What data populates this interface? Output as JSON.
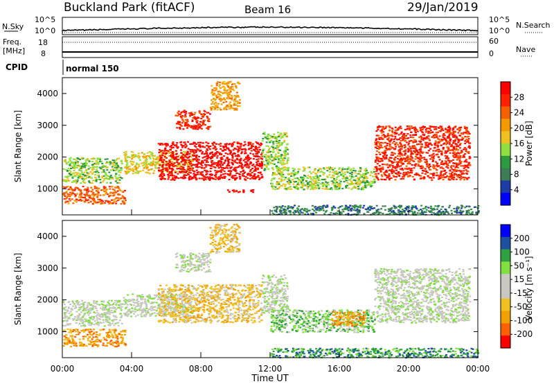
{
  "header": {
    "title": "Buckland Park (fitACF)",
    "beam": "Beam 16",
    "date": "29/Jan/2019"
  },
  "top_panel": {
    "nsky_label": "N.Sky",
    "nsearch_label": "N.Search",
    "left_ticks": [
      "10^5",
      "10^0"
    ],
    "right_ticks": [
      "10^5",
      "10^0"
    ],
    "freq_label_1": "Freq.",
    "freq_label_2": "[MHz]",
    "freq_ticks": [
      "18",
      "8"
    ],
    "nave_label": "Nave",
    "nave_ticks": [
      "60",
      "0"
    ],
    "cpid_label": "CPID",
    "cpid_value": "normal 150"
  },
  "x_axis": {
    "label": "Time UT",
    "ticks": [
      "00:00",
      "04:00",
      "08:00",
      "12:00",
      "16:00",
      "20:00",
      "00:00"
    ]
  },
  "colors": {
    "power": [
      "#0000ff",
      "#1e3ca8",
      "#3c7d55",
      "#2e9a40",
      "#90e040",
      "#f0c020",
      "#f49a00",
      "#f46000",
      "#ff2000",
      "#ff0000"
    ],
    "velocity": [
      "#ff0000",
      "#ff6000",
      "#f0a000",
      "#f0c020",
      "#c8c8c0",
      "#c8c8c0",
      "#80e040",
      "#2ea040",
      "#1e50a0",
      "#0000ff"
    ]
  },
  "chart_data": [
    {
      "type": "heatmap",
      "name": "power",
      "ylabel": "Slant Range [km]",
      "xlabel": "Time UT",
      "ylim": [
        180,
        4500
      ],
      "xlim": [
        0,
        24
      ],
      "yticks": [
        1000,
        2000,
        3000,
        4000
      ],
      "colorbar_label": "Power [dB]",
      "colorbar_ticks": [
        "28",
        "24",
        "20",
        "16",
        "12",
        "8",
        "4"
      ],
      "regions": [
        {
          "t": [
            0.0,
            3.6
          ],
          "r": [
            550,
            1100
          ],
          "level": 7
        },
        {
          "t": [
            0.0,
            3.4
          ],
          "r": [
            1200,
            2000
          ],
          "level": 4
        },
        {
          "t": [
            3.5,
            7.5
          ],
          "r": [
            1500,
            2200
          ],
          "level": 5
        },
        {
          "t": [
            5.5,
            11.5
          ],
          "r": [
            1300,
            2500
          ],
          "level": 9
        },
        {
          "t": [
            6.5,
            8.5
          ],
          "r": [
            2900,
            3500
          ],
          "level": 8
        },
        {
          "t": [
            8.5,
            10.2
          ],
          "r": [
            3500,
            4400
          ],
          "level": 6
        },
        {
          "t": [
            9.5,
            11.0
          ],
          "r": [
            900,
            1000
          ],
          "level": 9
        },
        {
          "t": [
            11.5,
            13.0
          ],
          "r": [
            1600,
            2800
          ],
          "level": 4
        },
        {
          "t": [
            12.0,
            18.0
          ],
          "r": [
            1000,
            1700
          ],
          "level": 4
        },
        {
          "t": [
            18.0,
            23.5
          ],
          "r": [
            1300,
            3000
          ],
          "level": 8
        },
        {
          "t": [
            12.0,
            24.0
          ],
          "r": [
            200,
            500
          ],
          "level": 2
        }
      ]
    },
    {
      "type": "heatmap",
      "name": "velocity",
      "ylabel": "Slant Range [km]",
      "xlabel": "Time UT",
      "ylim": [
        180,
        4500
      ],
      "xlim": [
        0,
        24
      ],
      "yticks": [
        1000,
        2000,
        3000,
        4000
      ],
      "colorbar_label": "Velocity [m s⁻¹]",
      "colorbar_ticks": [
        "200",
        "100",
        "50",
        "15",
        "-15",
        "-50",
        "-100",
        "-200"
      ],
      "regions": [
        {
          "t": [
            0.0,
            3.6
          ],
          "r": [
            550,
            1100
          ],
          "level": 2
        },
        {
          "t": [
            0.0,
            3.4
          ],
          "r": [
            1200,
            2000
          ],
          "level": 5
        },
        {
          "t": [
            3.5,
            7.5
          ],
          "r": [
            1500,
            2200
          ],
          "level": 5
        },
        {
          "t": [
            5.5,
            11.5
          ],
          "r": [
            1300,
            2500
          ],
          "level": 3
        },
        {
          "t": [
            6.5,
            8.5
          ],
          "r": [
            2900,
            3500
          ],
          "level": 5
        },
        {
          "t": [
            8.5,
            10.2
          ],
          "r": [
            3500,
            4400
          ],
          "level": 3
        },
        {
          "t": [
            11.5,
            13.0
          ],
          "r": [
            1600,
            2800
          ],
          "level": 5
        },
        {
          "t": [
            12.0,
            18.0
          ],
          "r": [
            1000,
            1700
          ],
          "level": 6
        },
        {
          "t": [
            15.5,
            17.5
          ],
          "r": [
            1200,
            1650
          ],
          "level": 2
        },
        {
          "t": [
            18.0,
            23.5
          ],
          "r": [
            1300,
            3000
          ],
          "level": 5
        },
        {
          "t": [
            12.0,
            24.0
          ],
          "r": [
            200,
            500
          ],
          "level": 7
        }
      ]
    }
  ]
}
